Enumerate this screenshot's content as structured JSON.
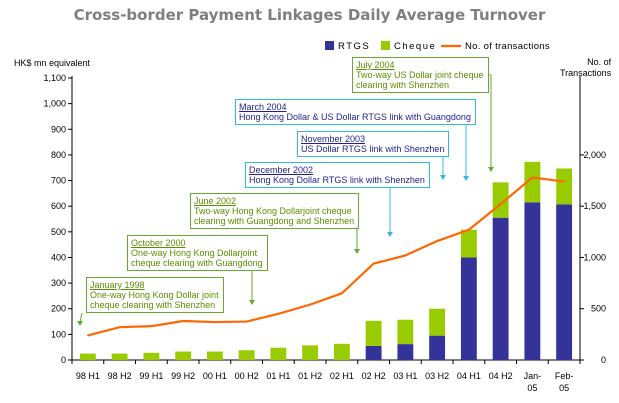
{
  "chart_data": {
    "type": "bar+line",
    "title": "Cross-border Payment Linkages Daily Average Turnover",
    "y_left_label": "HK$ mn equivalent",
    "y_right_label": [
      "No. of",
      "Transactions"
    ],
    "y_left_range": [
      0,
      1100
    ],
    "y_right_range": [
      0,
      2750
    ],
    "y_left_ticks": [
      "0",
      "100",
      "200",
      "300",
      "400",
      "500",
      "600",
      "700",
      "800",
      "900",
      "1,000",
      "1,100"
    ],
    "y_right_ticks": [
      "0",
      "500",
      "1,000",
      "1,500",
      "2,000"
    ],
    "categories": [
      [
        "98 H1"
      ],
      [
        "98 H2"
      ],
      [
        "99 H1"
      ],
      [
        "99 H2"
      ],
      [
        "00 H1"
      ],
      [
        "00 H2"
      ],
      [
        "01 H1"
      ],
      [
        "01 H2"
      ],
      [
        "02 H1"
      ],
      [
        "02 H2"
      ],
      [
        "03 H1"
      ],
      [
        "03 H2"
      ],
      [
        "04 H1"
      ],
      [
        "04 H2"
      ],
      [
        "Jan-",
        "05"
      ],
      [
        "Feb-",
        "05"
      ]
    ],
    "series": [
      {
        "name": "RTGS",
        "type": "stacked-bar",
        "color": "#333399",
        "values": [
          0,
          0,
          0,
          0,
          0,
          0,
          0,
          0,
          0,
          55,
          62,
          95,
          400,
          555,
          615,
          607
        ]
      },
      {
        "name": "Cheque",
        "type": "stacked-bar",
        "color": "#99cc00",
        "values": [
          25,
          25,
          28,
          33,
          33,
          38,
          48,
          57,
          63,
          98,
          95,
          105,
          108,
          138,
          158,
          140
        ]
      },
      {
        "name": "No. of transactions",
        "type": "line",
        "axis": "right",
        "color": "#ff6600",
        "values": [
          240,
          320,
          330,
          380,
          370,
          375,
          450,
          540,
          650,
          940,
          1020,
          1160,
          1270,
          1520,
          1780,
          1740
        ]
      }
    ],
    "annotations": [
      {
        "date": "January 1998",
        "lines": [
          "One-way Hong Kong Dollar joint",
          "cheque clearing with Shenzhen"
        ],
        "color": "green"
      },
      {
        "date": "October 2000",
        "lines": [
          "One-way Hong Kong Dollarjoint",
          "cheque clearing with Guangdong"
        ],
        "color": "green"
      },
      {
        "date": "June 2002",
        "lines": [
          "Two-way Hong Kong Dollarjoint cheque",
          "clearing with Guangdong and Shenzhen"
        ],
        "color": "green"
      },
      {
        "date": "December 2002",
        "lines": [
          "Hong Kong Dollar RTGS link with Shenzhen"
        ],
        "color": "blue"
      },
      {
        "date": "November 2003",
        "lines": [
          "US Dollar RTGS link with Shenzhen"
        ],
        "color": "blue"
      },
      {
        "date": "March 2004",
        "lines": [
          "Hong Kong Dollar & US Dollar RTGS link with Guangdong"
        ],
        "color": "blue"
      },
      {
        "date": "July 2004",
        "lines": [
          "Two-way US Dollar joint cheque",
          "clearing with Shenzhen"
        ],
        "color": "green"
      }
    ]
  }
}
